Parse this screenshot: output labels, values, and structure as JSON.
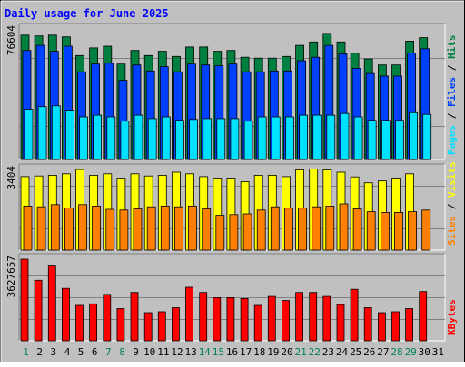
{
  "chart_data": {
    "type": "bar",
    "title": "Daily usage for June 2025",
    "days": [
      "1",
      "2",
      "3",
      "4",
      "5",
      "6",
      "7",
      "8",
      "9",
      "10",
      "11",
      "12",
      "13",
      "14",
      "15",
      "16",
      "17",
      "18",
      "19",
      "20",
      "21",
      "22",
      "23",
      "24",
      "25",
      "26",
      "27",
      "28",
      "29",
      "30",
      "31"
    ],
    "weekend_days": [
      "1",
      "7",
      "8",
      "14",
      "15",
      "21",
      "22",
      "28",
      "29"
    ],
    "panels": [
      {
        "id": "hits-files-pages",
        "scale_max": 76604,
        "scale_label": "76604",
        "legend": [
          "Pages",
          "Files",
          "Hits"
        ],
        "series": [
          {
            "name": "Hits",
            "color": "#008040",
            "values": [
              73000,
              72500,
              73000,
              72000,
              61000,
              65500,
              66500,
              56000,
              64000,
              61000,
              63500,
              60500,
              66000,
              66000,
              63500,
              64000,
              60000,
              59500,
              59500,
              60500,
              67000,
              69000,
              74000,
              69000,
              62500,
              59000,
              55500,
              55500,
              69500,
              71500,
              null
            ]
          },
          {
            "name": "Files",
            "color": "#0040ff",
            "values": [
              64000,
              67000,
              63500,
              66500,
              51500,
              56000,
              56500,
              46500,
              55500,
              52000,
              54500,
              51500,
              56000,
              55500,
              55000,
              56000,
              51500,
              51500,
              52000,
              52000,
              58000,
              60000,
              67000,
              62000,
              53500,
              50500,
              49000,
              49000,
              62500,
              65000,
              null
            ]
          },
          {
            "name": "Pages",
            "color": "#00e0ff",
            "values": [
              29500,
              31000,
              31500,
              29000,
              25000,
              26000,
              25000,
              22500,
              26000,
              24000,
              25000,
              23000,
              23500,
              24000,
              24000,
              24000,
              22500,
              25000,
              25000,
              25000,
              26000,
              26000,
              26000,
              27000,
              25000,
              23000,
              23000,
              23000,
              27500,
              26500,
              null
            ]
          }
        ]
      },
      {
        "id": "visits-sites",
        "scale_max": 3404,
        "scale_label": "3404",
        "legend": [
          "Sites",
          "Visits"
        ],
        "series": [
          {
            "name": "Visits",
            "color": "#ffff00",
            "values": [
              3100,
              3130,
              3160,
              3220,
              3400,
              3160,
              3220,
              3040,
              3220,
              3130,
              3160,
              3290,
              3220,
              3100,
              3040,
              3040,
              2890,
              3160,
              3160,
              3100,
              3390,
              3420,
              3390,
              3290,
              3090,
              2840,
              2920,
              3040,
              3220,
              null,
              null
            ]
          },
          {
            "name": "Sites",
            "color": "#ff8000",
            "values": [
              1860,
              1830,
              1920,
              1780,
              1920,
              1860,
              1720,
              1690,
              1740,
              1830,
              1860,
              1830,
              1860,
              1740,
              1470,
              1500,
              1530,
              1690,
              1830,
              1770,
              1770,
              1830,
              1860,
              1950,
              1740,
              1620,
              1590,
              1590,
              1620,
              1690,
              null
            ]
          }
        ]
      },
      {
        "id": "kbytes",
        "scale_max": 3627657,
        "scale_label": "3627657",
        "legend": [
          "KBytes"
        ],
        "series": [
          {
            "name": "KBytes",
            "color": "#ff0000",
            "values": [
              3627657,
              2690000,
              3360000,
              2330000,
              1570000,
              1640000,
              2060000,
              1430000,
              2150000,
              1250000,
              1290000,
              1470000,
              2380000,
              2150000,
              1920000,
              1920000,
              1880000,
              1570000,
              1970000,
              1790000,
              2150000,
              2150000,
              1970000,
              1610000,
              2290000,
              1470000,
              1250000,
              1290000,
              1430000,
              2190000,
              null
            ]
          }
        ]
      }
    ]
  }
}
